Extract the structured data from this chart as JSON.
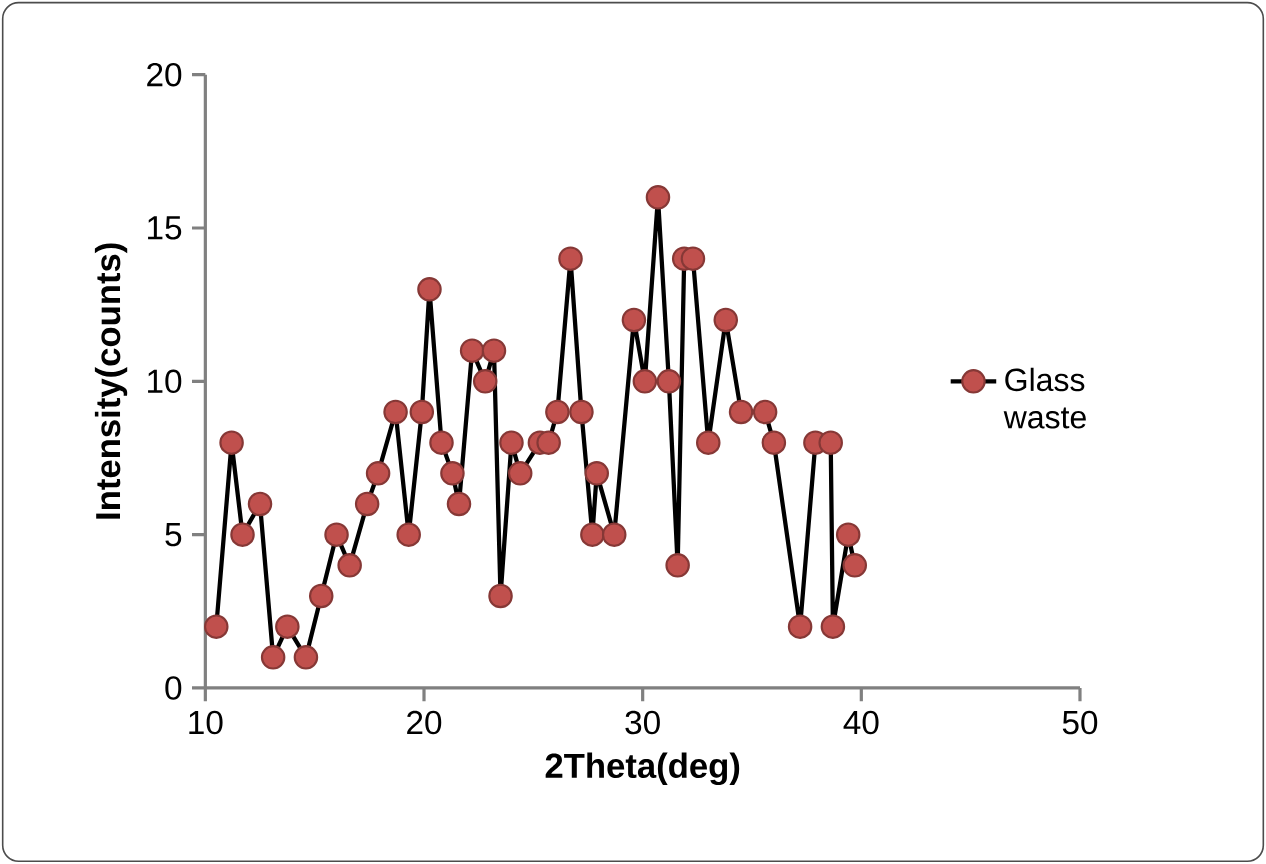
{
  "chart_data": {
    "type": "line",
    "xlabel": "2Theta(deg)",
    "ylabel": "Intensity(counts)",
    "x": [
      10.5,
      11.2,
      11.7,
      12.5,
      13.1,
      13.75,
      14.6,
      15.3,
      16.0,
      16.6,
      17.4,
      17.9,
      18.7,
      19.3,
      19.9,
      20.25,
      20.8,
      21.3,
      21.6,
      22.2,
      22.8,
      23.2,
      23.5,
      24.0,
      24.4,
      25.3,
      25.7,
      26.1,
      26.7,
      27.2,
      27.7,
      27.9,
      28.7,
      29.6,
      30.1,
      30.7,
      31.2,
      31.6,
      31.9,
      32.3,
      33.0,
      33.8,
      34.5,
      35.6,
      36.0,
      37.2,
      37.9,
      38.6,
      38.7,
      39.4,
      39.7
    ],
    "series": [
      {
        "name": "Glass waste",
        "color": "#c0504d",
        "values": [
          2,
          8,
          5,
          6,
          1,
          2,
          1,
          3,
          5,
          4,
          6,
          7,
          9,
          5,
          9,
          13,
          8,
          7,
          6,
          11,
          10,
          11,
          3,
          8,
          7,
          8,
          8,
          9,
          14,
          9,
          5,
          7,
          5,
          12,
          10,
          16,
          10,
          4,
          14,
          14,
          8,
          12,
          9,
          9,
          8,
          2,
          8,
          8,
          2,
          5,
          4
        ]
      }
    ],
    "xlim": [
      10,
      50
    ],
    "xticks": [
      10,
      20,
      30,
      40,
      50
    ],
    "ylim": [
      0,
      20
    ],
    "yticks": [
      0,
      5,
      10,
      15,
      20
    ],
    "marker": "circle",
    "line_style": "solid",
    "legend": "right",
    "grid": false
  }
}
